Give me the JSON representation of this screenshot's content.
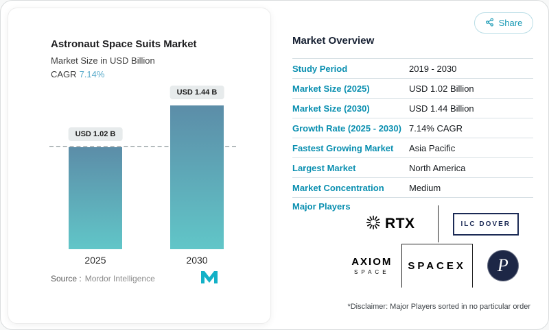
{
  "colors": {
    "accent": "#0a8fb0",
    "cagr_value": "#56a9c9",
    "bar_gradient_top": "#5c8da8",
    "bar_gradient_bottom": "#61c6c8",
    "heading": "#172133",
    "divider": "#d6dfe4",
    "brand_teal": "#13b1c7"
  },
  "left": {
    "title": "Astronaut Space Suits Market",
    "subtitle": "Market Size in USD Billion",
    "cagr_label": "CAGR",
    "cagr_value": "7.14%",
    "source_label": "Source :",
    "source_value": "Mordor Intelligence",
    "logo": "mordor-intelligence-logo"
  },
  "chart_data": {
    "type": "bar",
    "title": "Astronaut Space Suits Market",
    "subtitle": "Market Size in USD Billion",
    "categories": [
      "2025",
      "2030"
    ],
    "values": [
      1.02,
      1.44
    ],
    "unit": "USD Billion",
    "bar_labels": [
      "USD 1.02 B",
      "USD 1.44 B"
    ],
    "cagr": "7.14%",
    "ylim": [
      0,
      1.55
    ],
    "gridline": {
      "style": "dashed",
      "at_value": 1.02
    },
    "legend": "off",
    "axis": "x ticks only"
  },
  "share": {
    "label": "Share",
    "icon": "share-icon"
  },
  "overview": {
    "title": "Market Overview",
    "rows": [
      {
        "label": "Study Period",
        "value": "2019 - 2030"
      },
      {
        "label": "Market Size (2025)",
        "value": "USD 1.02 Billion"
      },
      {
        "label": "Market Size (2030)",
        "value": "USD 1.44 Billion"
      },
      {
        "label": "Growth Rate (2025 - 2030)",
        "value": "7.14% CAGR"
      },
      {
        "label": "Fastest Growing Market",
        "value": "Asia Pacific"
      },
      {
        "label": "Largest Market",
        "value": "North America"
      },
      {
        "label": "Market Concentration",
        "value": "Medium"
      }
    ],
    "major_players_label": "Major Players",
    "players": {
      "rtx": "RTX",
      "ilc_dover": "ILC DOVER",
      "axiom_line1": "AXIOM",
      "axiom_line2": "SPACE",
      "spacex": "SPACEX",
      "p_monogram": "P"
    },
    "disclaimer": "*Disclaimer: Major Players sorted in no particular order"
  }
}
